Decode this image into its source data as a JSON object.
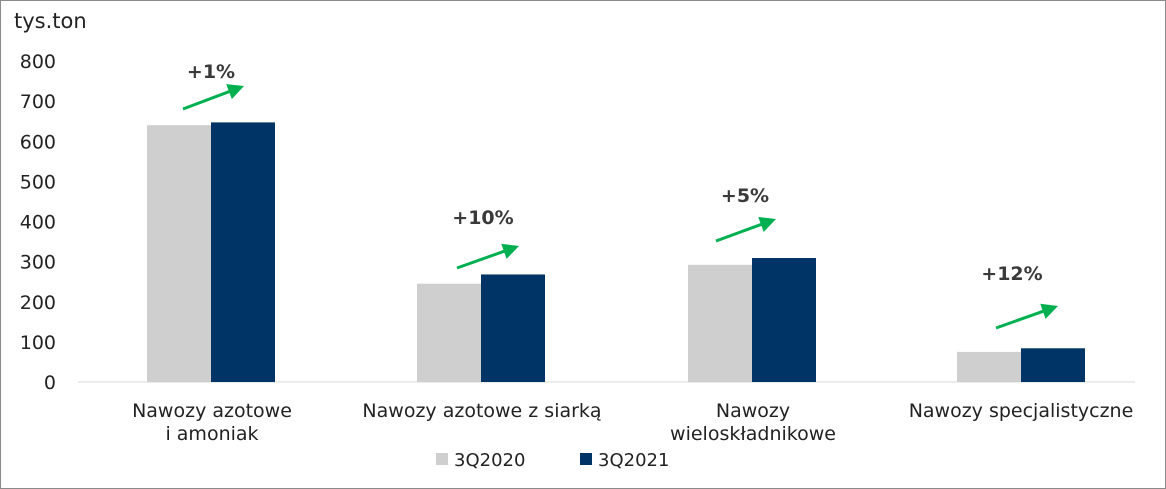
{
  "chart_data": {
    "type": "bar",
    "ylabel": "tys.ton",
    "ylim": [
      0,
      800
    ],
    "yticks": [
      0,
      100,
      200,
      300,
      400,
      500,
      600,
      700,
      800
    ],
    "grid": false,
    "legend_position": "bottom-center",
    "categories": [
      [
        "Nawozy azotowe",
        "i amoniak"
      ],
      [
        "Nawozy azotowe z siarką"
      ],
      [
        "Nawozy",
        "wieloskładnikowe"
      ],
      [
        "Nawozy specjalistyczne"
      ]
    ],
    "series": [
      {
        "name": "3Q2020",
        "color": "#cfcfcf",
        "values": [
          640,
          245,
          292,
          75
        ]
      },
      {
        "name": "3Q2021",
        "color": "#003366",
        "values": [
          647,
          268,
          309,
          84
        ]
      }
    ],
    "annotations": [
      "+1%",
      "+10%",
      "+5%",
      "+12%"
    ],
    "arrow_color": "#00b050"
  }
}
